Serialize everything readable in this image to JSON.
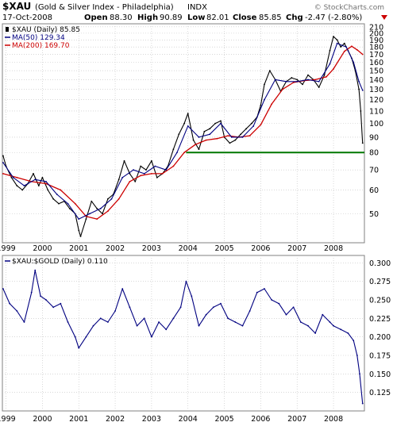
{
  "header": {
    "symbol": "$XAU",
    "description": "(Gold & Silver Index - Philadelphia)",
    "exchange": "INDX",
    "date": "17-Oct-2008",
    "open_label": "Open",
    "open": "88.30",
    "high_label": "High",
    "high": "90.89",
    "low_label": "Low",
    "low": "82.01",
    "close_label": "Close",
    "close": "85.85",
    "chg_label": "Chg",
    "chg": "-2.47 (-2.80%)",
    "watermark": "© StockCharts.com"
  },
  "legend_top": [
    {
      "text": "$XAU (Daily) 85.85",
      "color": "#000000"
    },
    {
      "text": "MA(50) 129.34",
      "color": "#000080"
    },
    {
      "text": "MA(200) 169.70",
      "color": "#cc0000"
    }
  ],
  "legend_bottom": {
    "text": "$XAU:$GOLD (Daily) 0.110"
  },
  "x_labels": [
    "1999",
    "2000",
    "2001",
    "2002",
    "2003",
    "2004",
    "2005",
    "2006",
    "2007",
    "2008"
  ],
  "colors": {
    "price": "#000000",
    "ma50": "#000080",
    "ma200": "#cc0000",
    "support": "#007700",
    "ratio": "#000080",
    "grid": "#c0c0c0",
    "frame": "#808080"
  },
  "chart_data": [
    {
      "type": "line",
      "title": "$XAU (Daily) 85.85",
      "scale": "log",
      "ylim": [
        40,
        215
      ],
      "yticks": [
        50,
        60,
        70,
        80,
        90,
        100,
        110,
        120,
        130,
        140,
        150,
        160,
        170,
        180,
        190,
        200,
        210
      ],
      "x_range": [
        1998.9,
        2008.85
      ],
      "horizontal_line": {
        "value": 80,
        "from_x": 2003.95,
        "color": "#007700"
      },
      "series": [
        {
          "name": "$XAU (Daily)",
          "x": [
            1998.92,
            1999.0,
            1999.15,
            1999.3,
            1999.45,
            1999.6,
            1999.75,
            1999.9,
            2000.0,
            2000.15,
            2000.3,
            2000.45,
            2000.6,
            2000.75,
            2000.9,
            2001.0,
            2001.05,
            2001.2,
            2001.35,
            2001.5,
            2001.65,
            2001.8,
            2001.95,
            2002.1,
            2002.25,
            2002.4,
            2002.55,
            2002.7,
            2002.85,
            2003.0,
            2003.15,
            2003.3,
            2003.45,
            2003.6,
            2003.75,
            2003.9,
            2004.0,
            2004.15,
            2004.3,
            2004.45,
            2004.6,
            2004.75,
            2004.9,
            2005.0,
            2005.15,
            2005.3,
            2005.45,
            2005.6,
            2005.75,
            2005.9,
            2006.0,
            2006.1,
            2006.25,
            2006.4,
            2006.55,
            2006.7,
            2006.85,
            2007.0,
            2007.15,
            2007.3,
            2007.45,
            2007.6,
            2007.75,
            2007.9,
            2008.0,
            2008.1,
            2008.2,
            2008.3,
            2008.4,
            2008.5,
            2008.6,
            2008.7,
            2008.75,
            2008.8
          ],
          "values": [
            78,
            72,
            66,
            62,
            60,
            63,
            68,
            62,
            66,
            60,
            56,
            54,
            55,
            52,
            50,
            44,
            42,
            48,
            55,
            52,
            50,
            56,
            58,
            65,
            75,
            68,
            64,
            72,
            70,
            75,
            66,
            68,
            72,
            82,
            92,
            100,
            108,
            88,
            82,
            94,
            96,
            100,
            102,
            90,
            86,
            88,
            92,
            96,
            100,
            105,
            115,
            135,
            150,
            140,
            128,
            138,
            142,
            140,
            135,
            145,
            140,
            132,
            145,
            175,
            195,
            190,
            180,
            185,
            175,
            165,
            150,
            130,
            110,
            86
          ]
        },
        {
          "name": "MA(50)",
          "x": [
            1998.92,
            1999.2,
            1999.5,
            1999.8,
            2000.1,
            2000.4,
            2000.7,
            2001.0,
            2001.3,
            2001.6,
            2001.9,
            2002.2,
            2002.5,
            2002.8,
            2003.1,
            2003.4,
            2003.7,
            2004.0,
            2004.3,
            2004.6,
            2004.9,
            2005.2,
            2005.5,
            2005.8,
            2006.1,
            2006.4,
            2006.7,
            2007.0,
            2007.3,
            2007.6,
            2007.9,
            2008.1,
            2008.35,
            2008.55,
            2008.7,
            2008.8
          ],
          "values": [
            74,
            66,
            62,
            65,
            64,
            58,
            54,
            48,
            50,
            52,
            56,
            66,
            70,
            68,
            72,
            70,
            80,
            98,
            90,
            92,
            100,
            90,
            90,
            98,
            120,
            140,
            138,
            138,
            140,
            138,
            158,
            185,
            180,
            160,
            138,
            129
          ]
        },
        {
          "name": "MA(200)",
          "x": [
            1998.92,
            1999.3,
            1999.7,
            2000.1,
            2000.5,
            2000.9,
            2001.2,
            2001.5,
            2001.8,
            2002.1,
            2002.4,
            2002.7,
            2003.0,
            2003.3,
            2003.6,
            2003.9,
            2004.2,
            2004.5,
            2004.8,
            2005.1,
            2005.4,
            2005.7,
            2006.0,
            2006.3,
            2006.6,
            2006.9,
            2007.2,
            2007.5,
            2007.8,
            2008.0,
            2008.3,
            2008.5,
            2008.65,
            2008.8
          ],
          "values": [
            68,
            66,
            64,
            63,
            60,
            54,
            49,
            48,
            51,
            56,
            64,
            67,
            68,
            68,
            72,
            80,
            85,
            88,
            89,
            91,
            90,
            91,
            99,
            116,
            130,
            137,
            139,
            140,
            143,
            152,
            174,
            181,
            176,
            170
          ]
        }
      ]
    },
    {
      "type": "line",
      "title": "$XAU:$GOLD (Daily) 0.110",
      "ylim": [
        0.1,
        0.31
      ],
      "yticks": [
        0.125,
        0.15,
        0.175,
        0.2,
        0.225,
        0.25,
        0.275,
        0.3
      ],
      "x_range": [
        1998.9,
        2008.85
      ],
      "series": [
        {
          "name": "$XAU:$GOLD (Daily)",
          "x": [
            1998.92,
            1999.1,
            1999.3,
            1999.5,
            1999.7,
            1999.8,
            1999.95,
            2000.1,
            2000.3,
            2000.5,
            2000.7,
            2000.9,
            2001.0,
            2001.2,
            2001.4,
            2001.6,
            2001.8,
            2002.0,
            2002.2,
            2002.4,
            2002.6,
            2002.8,
            2003.0,
            2003.2,
            2003.4,
            2003.6,
            2003.8,
            2003.95,
            2004.1,
            2004.3,
            2004.5,
            2004.7,
            2004.9,
            2005.1,
            2005.3,
            2005.5,
            2005.7,
            2005.9,
            2006.1,
            2006.3,
            2006.5,
            2006.7,
            2006.9,
            2007.1,
            2007.3,
            2007.5,
            2007.7,
            2007.9,
            2008.0,
            2008.2,
            2008.4,
            2008.55,
            2008.65,
            2008.72,
            2008.8
          ],
          "values": [
            0.265,
            0.245,
            0.235,
            0.22,
            0.26,
            0.29,
            0.255,
            0.25,
            0.24,
            0.245,
            0.22,
            0.2,
            0.185,
            0.2,
            0.215,
            0.225,
            0.22,
            0.235,
            0.265,
            0.24,
            0.215,
            0.225,
            0.2,
            0.22,
            0.21,
            0.225,
            0.24,
            0.275,
            0.255,
            0.215,
            0.23,
            0.24,
            0.245,
            0.225,
            0.22,
            0.215,
            0.235,
            0.26,
            0.265,
            0.25,
            0.245,
            0.23,
            0.24,
            0.22,
            0.215,
            0.205,
            0.23,
            0.22,
            0.215,
            0.21,
            0.205,
            0.195,
            0.175,
            0.15,
            0.11
          ]
        }
      ]
    }
  ]
}
